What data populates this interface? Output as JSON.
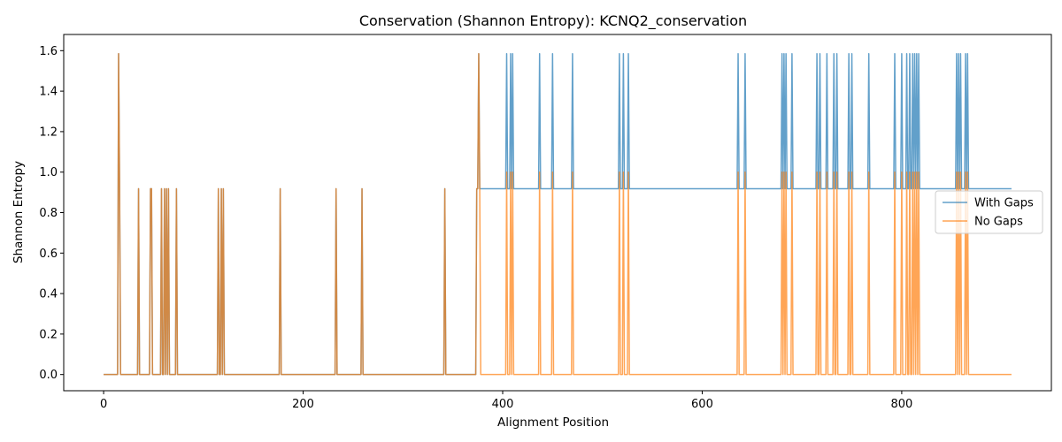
{
  "chart_data": {
    "type": "line",
    "title": "Conservation (Shannon Entropy): KCNQ2_conservation",
    "xlabel": "Alignment Position",
    "ylabel": "Shannon Entropy",
    "xlim": [
      -40,
      950
    ],
    "ylim": [
      -0.08,
      1.68
    ],
    "xticks": [
      0,
      200,
      400,
      600,
      800
    ],
    "yticks": [
      0.0,
      0.2,
      0.4,
      0.6,
      0.8,
      1.0,
      1.2,
      1.4,
      1.6
    ],
    "legend_position": "center-right",
    "grid": false,
    "x_max": 910,
    "series": [
      {
        "name": "With Gaps",
        "color": "#1f77b4",
        "opacity": 0.7,
        "baseline": [
          {
            "from": 0,
            "to": 374,
            "value": 0.0
          },
          {
            "from": 374,
            "to": 910,
            "value": 0.918
          }
        ],
        "spikes": [
          [
            15,
            1.585
          ],
          [
            16,
            0.918
          ],
          [
            35,
            0.918
          ],
          [
            47,
            0.918
          ],
          [
            48,
            0.918
          ],
          [
            58,
            0.918
          ],
          [
            61,
            0.918
          ],
          [
            63,
            0.918
          ],
          [
            65,
            0.918
          ],
          [
            73,
            0.918
          ],
          [
            115,
            0.918
          ],
          [
            118,
            0.918
          ],
          [
            120,
            0.918
          ],
          [
            177,
            0.918
          ],
          [
            233,
            0.918
          ],
          [
            259,
            0.918
          ],
          [
            342,
            0.918
          ],
          [
            376,
            1.585
          ],
          [
            404,
            1.585
          ],
          [
            408,
            1.585
          ],
          [
            410,
            1.585
          ],
          [
            437,
            1.585
          ],
          [
            450,
            1.585
          ],
          [
            470,
            1.585
          ],
          [
            517,
            1.585
          ],
          [
            521,
            1.585
          ],
          [
            526,
            1.585
          ],
          [
            636,
            1.585
          ],
          [
            643,
            1.585
          ],
          [
            680,
            1.585
          ],
          [
            682,
            1.585
          ],
          [
            684,
            1.585
          ],
          [
            690,
            1.585
          ],
          [
            715,
            1.585
          ],
          [
            718,
            1.585
          ],
          [
            725,
            1.585
          ],
          [
            732,
            1.585
          ],
          [
            735,
            1.585
          ],
          [
            747,
            1.585
          ],
          [
            750,
            1.585
          ],
          [
            767,
            1.585
          ],
          [
            793,
            1.585
          ],
          [
            800,
            1.585
          ],
          [
            805,
            1.585
          ],
          [
            808,
            1.585
          ],
          [
            811,
            1.585
          ],
          [
            813,
            1.585
          ],
          [
            815,
            1.585
          ],
          [
            817,
            1.585
          ],
          [
            855,
            1.585
          ],
          [
            857,
            1.585
          ],
          [
            859,
            1.585
          ],
          [
            864,
            1.585
          ],
          [
            866,
            1.585
          ]
        ]
      },
      {
        "name": "No Gaps",
        "color": "#ff7f0e",
        "opacity": 0.7,
        "baseline": [
          {
            "from": 0,
            "to": 910,
            "value": 0.0
          }
        ],
        "spikes": [
          [
            15,
            1.585
          ],
          [
            16,
            0.918
          ],
          [
            35,
            0.918
          ],
          [
            47,
            0.918
          ],
          [
            48,
            0.918
          ],
          [
            58,
            0.918
          ],
          [
            61,
            0.918
          ],
          [
            63,
            0.918
          ],
          [
            65,
            0.918
          ],
          [
            73,
            0.918
          ],
          [
            115,
            0.918
          ],
          [
            118,
            0.918
          ],
          [
            120,
            0.918
          ],
          [
            177,
            0.918
          ],
          [
            233,
            0.918
          ],
          [
            259,
            0.918
          ],
          [
            342,
            0.918
          ],
          [
            374,
            0.918
          ],
          [
            375,
            0.918
          ],
          [
            376,
            1.585
          ],
          [
            377,
            0.918
          ],
          [
            404,
            1.0
          ],
          [
            408,
            1.0
          ],
          [
            410,
            1.0
          ],
          [
            437,
            1.0
          ],
          [
            450,
            1.0
          ],
          [
            470,
            1.0
          ],
          [
            517,
            1.0
          ],
          [
            521,
            1.0
          ],
          [
            526,
            1.0
          ],
          [
            636,
            1.0
          ],
          [
            643,
            1.0
          ],
          [
            680,
            1.0
          ],
          [
            682,
            1.0
          ],
          [
            684,
            1.0
          ],
          [
            690,
            1.0
          ],
          [
            715,
            1.0
          ],
          [
            718,
            1.0
          ],
          [
            725,
            1.0
          ],
          [
            732,
            1.0
          ],
          [
            735,
            1.0
          ],
          [
            747,
            1.0
          ],
          [
            750,
            1.0
          ],
          [
            767,
            1.0
          ],
          [
            793,
            1.0
          ],
          [
            800,
            1.0
          ],
          [
            805,
            1.0
          ],
          [
            808,
            1.0
          ],
          [
            811,
            1.0
          ],
          [
            813,
            1.0
          ],
          [
            815,
            1.0
          ],
          [
            817,
            1.0
          ],
          [
            855,
            1.0
          ],
          [
            857,
            1.0
          ],
          [
            859,
            1.0
          ],
          [
            864,
            1.0
          ],
          [
            866,
            1.0
          ]
        ]
      }
    ]
  }
}
